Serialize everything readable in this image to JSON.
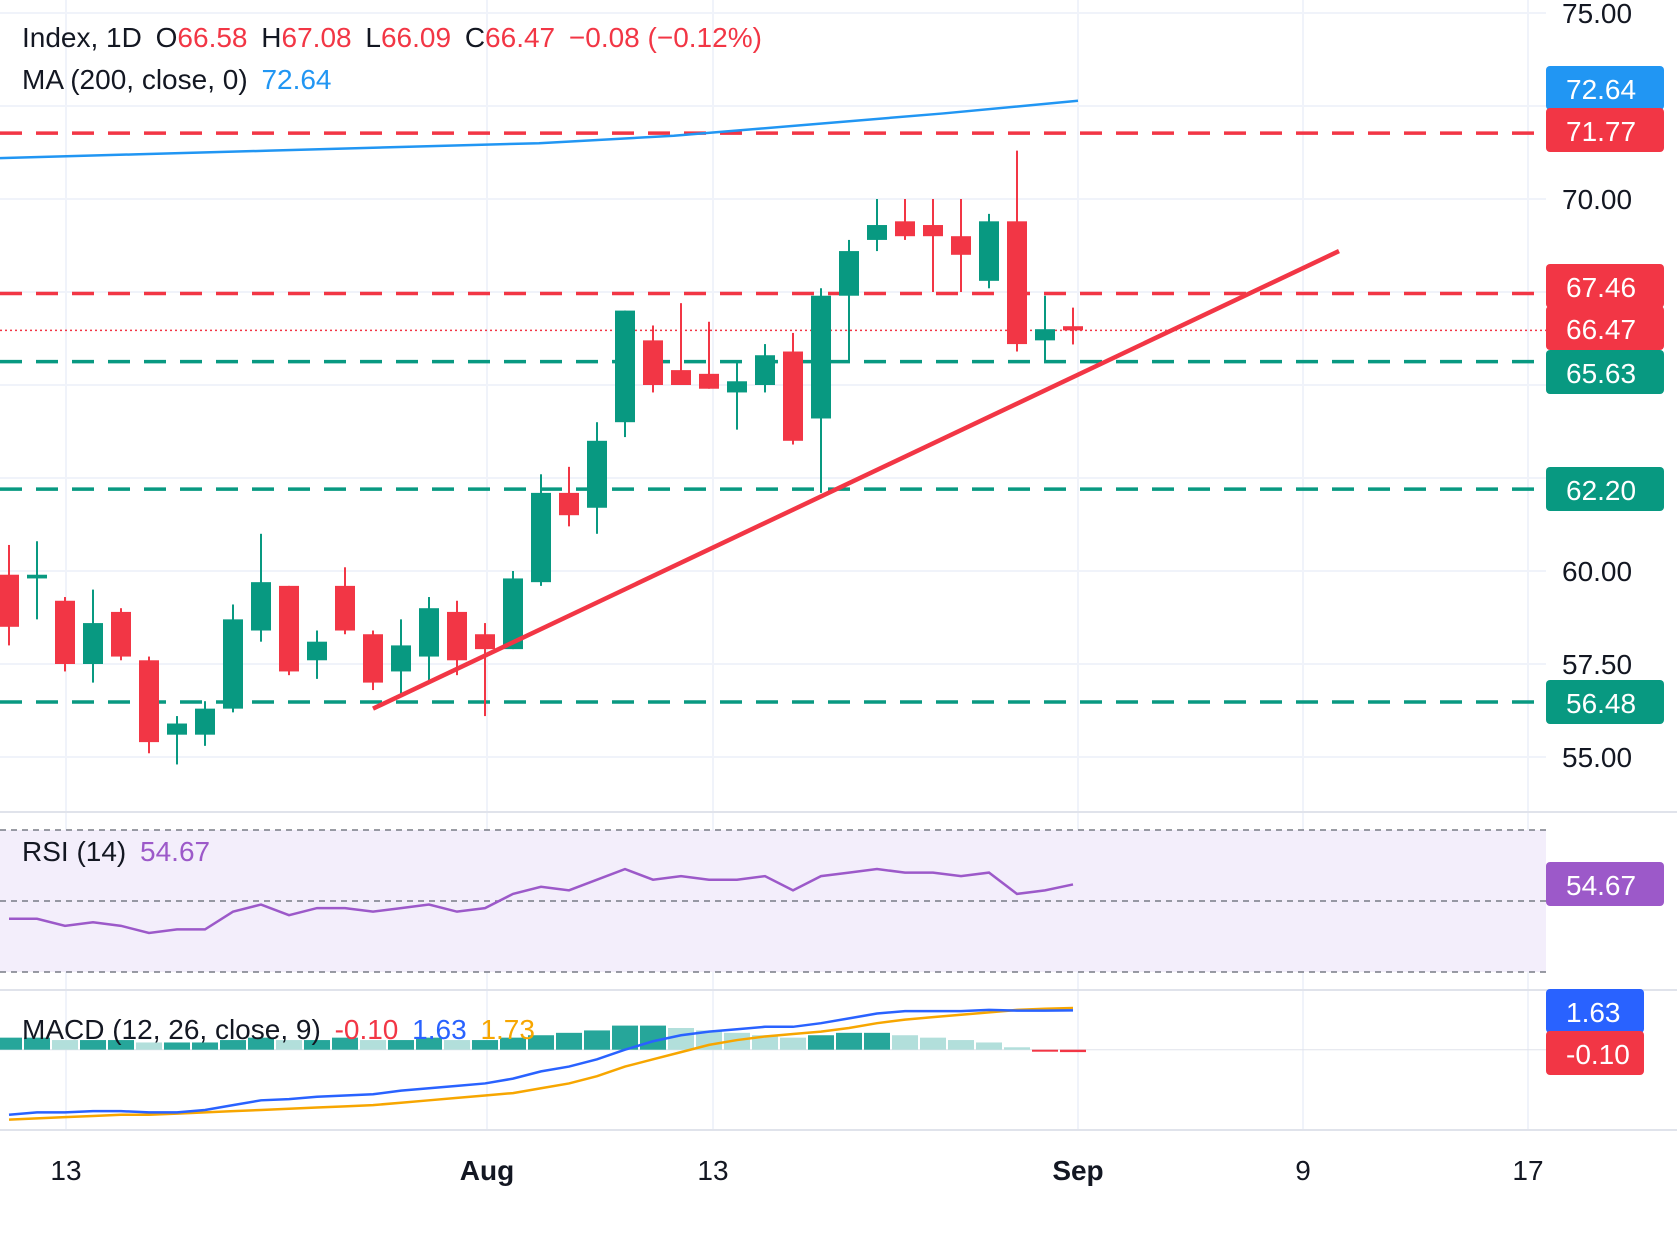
{
  "legend": {
    "symbol": "Index, 1D",
    "open_label": "O",
    "open": "66.58",
    "high_label": "H",
    "high": "67.08",
    "low_label": "L",
    "low": "66.09",
    "close_label": "C",
    "close": "66.47",
    "change": "−0.08 (−0.12%)",
    "ma_label": "MA (200, close, 0)",
    "ma_value": "72.64",
    "rsi_label": "RSI (14)",
    "rsi_value": "54.67",
    "macd_label": "MACD (12, 26, close, 9)",
    "macd_hist": "-0.10",
    "macd_line": "1.63",
    "macd_signal": "1.73"
  },
  "colors": {
    "up": "#089981",
    "down": "#f23645",
    "ma": "#2196f3",
    "rsi": "#9c59c9",
    "macd": "#2962ff",
    "signal": "#f7a600",
    "hist_up_strong": "#26a69a",
    "hist_up_weak": "#b2dfdb"
  },
  "chart_data": [
    {
      "type": "candlestick",
      "x_ticks": [
        "13",
        "Aug",
        "13",
        "Sep",
        "9",
        "17"
      ],
      "y_ticks": [
        "55.00",
        "57.50",
        "60.00",
        "70.00",
        "75.00"
      ],
      "ylim": [
        52.5,
        75.3
      ],
      "candles": [
        {
          "o": 59.9,
          "h": 60.7,
          "l": 58.0,
          "c": 58.5
        },
        {
          "o": 59.8,
          "h": 60.8,
          "l": 58.7,
          "c": 59.9
        },
        {
          "o": 59.2,
          "h": 59.3,
          "l": 57.3,
          "c": 57.5
        },
        {
          "o": 57.5,
          "h": 59.5,
          "l": 57.0,
          "c": 58.6
        },
        {
          "o": 58.9,
          "h": 59.0,
          "l": 57.6,
          "c": 57.7
        },
        {
          "o": 57.6,
          "h": 57.7,
          "l": 55.1,
          "c": 55.4
        },
        {
          "o": 55.6,
          "h": 56.1,
          "l": 54.8,
          "c": 55.9
        },
        {
          "o": 55.6,
          "h": 56.5,
          "l": 55.3,
          "c": 56.3
        },
        {
          "o": 56.3,
          "h": 59.1,
          "l": 56.2,
          "c": 58.7
        },
        {
          "o": 58.4,
          "h": 61.0,
          "l": 58.1,
          "c": 59.7
        },
        {
          "o": 59.6,
          "h": 59.6,
          "l": 57.2,
          "c": 57.3
        },
        {
          "o": 57.6,
          "h": 58.4,
          "l": 57.1,
          "c": 58.1
        },
        {
          "o": 59.6,
          "h": 60.1,
          "l": 58.3,
          "c": 58.4
        },
        {
          "o": 58.3,
          "h": 58.4,
          "l": 56.8,
          "c": 57.0
        },
        {
          "o": 57.3,
          "h": 58.7,
          "l": 56.6,
          "c": 58.0
        },
        {
          "o": 57.7,
          "h": 59.3,
          "l": 57.0,
          "c": 59.0
        },
        {
          "o": 58.9,
          "h": 59.2,
          "l": 57.2,
          "c": 57.6
        },
        {
          "o": 58.3,
          "h": 58.6,
          "l": 56.1,
          "c": 57.9
        },
        {
          "o": 57.9,
          "h": 60.0,
          "l": 57.9,
          "c": 59.8
        },
        {
          "o": 59.7,
          "h": 62.6,
          "l": 59.6,
          "c": 62.1
        },
        {
          "o": 62.1,
          "h": 62.8,
          "l": 61.2,
          "c": 61.5
        },
        {
          "o": 61.7,
          "h": 64.0,
          "l": 61.0,
          "c": 63.5
        },
        {
          "o": 64.0,
          "h": 67.0,
          "l": 63.6,
          "c": 67.0
        },
        {
          "o": 66.2,
          "h": 66.6,
          "l": 64.8,
          "c": 65.0
        },
        {
          "o": 65.4,
          "h": 67.2,
          "l": 65.0,
          "c": 65.0
        },
        {
          "o": 65.3,
          "h": 66.7,
          "l": 64.9,
          "c": 64.9
        },
        {
          "o": 64.8,
          "h": 65.6,
          "l": 63.8,
          "c": 65.1
        },
        {
          "o": 65.0,
          "h": 66.1,
          "l": 64.8,
          "c": 65.8
        },
        {
          "o": 65.9,
          "h": 66.4,
          "l": 63.4,
          "c": 63.5
        },
        {
          "o": 64.1,
          "h": 67.6,
          "l": 62.1,
          "c": 67.4
        },
        {
          "o": 67.4,
          "h": 68.9,
          "l": 65.6,
          "c": 68.6
        },
        {
          "o": 68.9,
          "h": 70.0,
          "l": 68.6,
          "c": 69.3
        },
        {
          "o": 69.4,
          "h": 70.0,
          "l": 68.9,
          "c": 69.0
        },
        {
          "o": 69.3,
          "h": 70.0,
          "l": 67.5,
          "c": 69.0
        },
        {
          "o": 69.0,
          "h": 70.0,
          "l": 67.5,
          "c": 68.5
        },
        {
          "o": 67.8,
          "h": 69.6,
          "l": 67.6,
          "c": 69.4
        },
        {
          "o": 69.4,
          "h": 71.3,
          "l": 65.9,
          "c": 66.1
        },
        {
          "o": 66.2,
          "h": 67.4,
          "l": 65.6,
          "c": 66.5
        },
        {
          "o": 66.58,
          "h": 67.08,
          "l": 66.09,
          "c": 66.47
        }
      ],
      "ma200": [
        71.1,
        71.2,
        71.3,
        71.4,
        71.5,
        71.7,
        72.0,
        72.3,
        72.64
      ],
      "levels": [
        {
          "value": "71.77",
          "color": "red"
        },
        {
          "value": "67.46",
          "color": "red"
        },
        {
          "value": "65.63",
          "color": "green"
        },
        {
          "value": "62.20",
          "color": "green"
        },
        {
          "value": "56.48",
          "color": "green"
        }
      ],
      "price_tags": [
        {
          "value": "72.64",
          "color": "blue"
        },
        {
          "value": "66.47",
          "color": "red"
        }
      ],
      "trendline": {
        "from": {
          "index": 13,
          "value": 56.3
        },
        "to": {
          "index": 47.5,
          "value": 68.6
        }
      }
    },
    {
      "type": "line",
      "name": "RSI (14)",
      "ylim": [
        30,
        70
      ],
      "bands": [
        30,
        50,
        70
      ],
      "values": [
        45,
        45,
        43,
        44,
        43,
        41,
        42,
        42,
        47,
        49,
        46,
        48,
        48,
        47,
        48,
        49,
        47,
        48,
        52,
        54,
        53,
        56,
        59,
        56,
        57,
        56,
        56,
        57,
        53,
        57,
        58,
        59,
        58,
        58,
        57,
        58,
        52,
        53,
        54.67
      ]
    },
    {
      "type": "bar+line",
      "name": "MACD (12, 26, close, 9)",
      "hist": [
        0.5,
        0.5,
        0.4,
        0.4,
        0.4,
        0.3,
        0.3,
        0.3,
        0.4,
        0.5,
        0.4,
        0.4,
        0.5,
        0.4,
        0.4,
        0.5,
        0.4,
        0.4,
        0.5,
        0.6,
        0.7,
        0.8,
        1.0,
        1.0,
        0.9,
        0.8,
        0.7,
        0.6,
        0.5,
        0.6,
        0.7,
        0.7,
        0.6,
        0.5,
        0.4,
        0.3,
        0.1,
        -0.05,
        -0.1
      ],
      "macd": [
        -2.7,
        -2.6,
        -2.6,
        -2.55,
        -2.55,
        -2.6,
        -2.6,
        -2.5,
        -2.3,
        -2.1,
        -2.05,
        -1.95,
        -1.9,
        -1.85,
        -1.7,
        -1.6,
        -1.5,
        -1.4,
        -1.2,
        -0.9,
        -0.7,
        -0.4,
        0.0,
        0.35,
        0.6,
        0.75,
        0.85,
        0.95,
        0.95,
        1.1,
        1.3,
        1.5,
        1.6,
        1.6,
        1.6,
        1.65,
        1.62,
        1.62,
        1.63
      ],
      "signal": [
        -2.9,
        -2.85,
        -2.8,
        -2.75,
        -2.7,
        -2.7,
        -2.65,
        -2.6,
        -2.55,
        -2.5,
        -2.45,
        -2.4,
        -2.35,
        -2.3,
        -2.2,
        -2.1,
        -2.0,
        -1.9,
        -1.8,
        -1.6,
        -1.4,
        -1.1,
        -0.7,
        -0.4,
        -0.1,
        0.2,
        0.4,
        0.55,
        0.65,
        0.75,
        0.9,
        1.1,
        1.25,
        1.35,
        1.45,
        1.55,
        1.65,
        1.7,
        1.73
      ],
      "ylim": [
        -3.3,
        2.2
      ]
    }
  ],
  "axis": {
    "rsi_tag": "54.67",
    "macd_tag": "1.63",
    "hist_tag": "-0.10"
  }
}
